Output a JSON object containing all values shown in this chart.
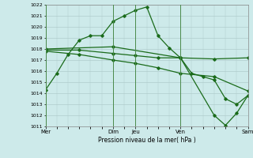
{
  "title": "Pression niveau de la mer( hPa )",
  "ylim": [
    1011,
    1022
  ],
  "yticks": [
    1011,
    1012,
    1013,
    1014,
    1015,
    1016,
    1017,
    1018,
    1019,
    1020,
    1021,
    1022
  ],
  "bg_color": "#cdeaea",
  "grid_color": "#b0cccc",
  "line_color": "#1a6b1a",
  "xtick_labels": [
    "Mer",
    "Dim",
    "Jeu",
    "Ven",
    "Sam"
  ],
  "xtick_positions": [
    0,
    6,
    8,
    12,
    18
  ],
  "vline_positions": [
    0,
    6,
    8,
    12,
    18
  ],
  "xlim": [
    0,
    18
  ],
  "line1_x": [
    0,
    1,
    2,
    3,
    4,
    5,
    6,
    7,
    8,
    9,
    10,
    11,
    12,
    13,
    14,
    15,
    16,
    17,
    18
  ],
  "line1_y": [
    1014.3,
    1015.8,
    1017.5,
    1018.8,
    1019.2,
    1019.2,
    1020.5,
    1021.0,
    1021.5,
    1021.8,
    1019.2,
    1018.1,
    1017.2,
    1015.8,
    1015.5,
    1015.2,
    1013.5,
    1013.0,
    1013.8
  ],
  "line2_x": [
    0,
    3,
    6,
    8,
    10,
    12,
    15,
    18
  ],
  "line2_y": [
    1017.9,
    1017.9,
    1017.6,
    1017.4,
    1017.2,
    1017.2,
    1017.1,
    1017.2
  ],
  "line3_x": [
    0,
    3,
    6,
    8,
    10,
    12,
    15,
    18
  ],
  "line3_y": [
    1017.8,
    1017.5,
    1017.0,
    1016.7,
    1016.3,
    1015.8,
    1015.5,
    1014.2
  ],
  "line4_x": [
    0,
    6,
    12,
    15,
    16,
    17,
    18
  ],
  "line4_y": [
    1018.0,
    1018.2,
    1017.2,
    1012.0,
    1011.1,
    1012.2,
    1013.8
  ]
}
